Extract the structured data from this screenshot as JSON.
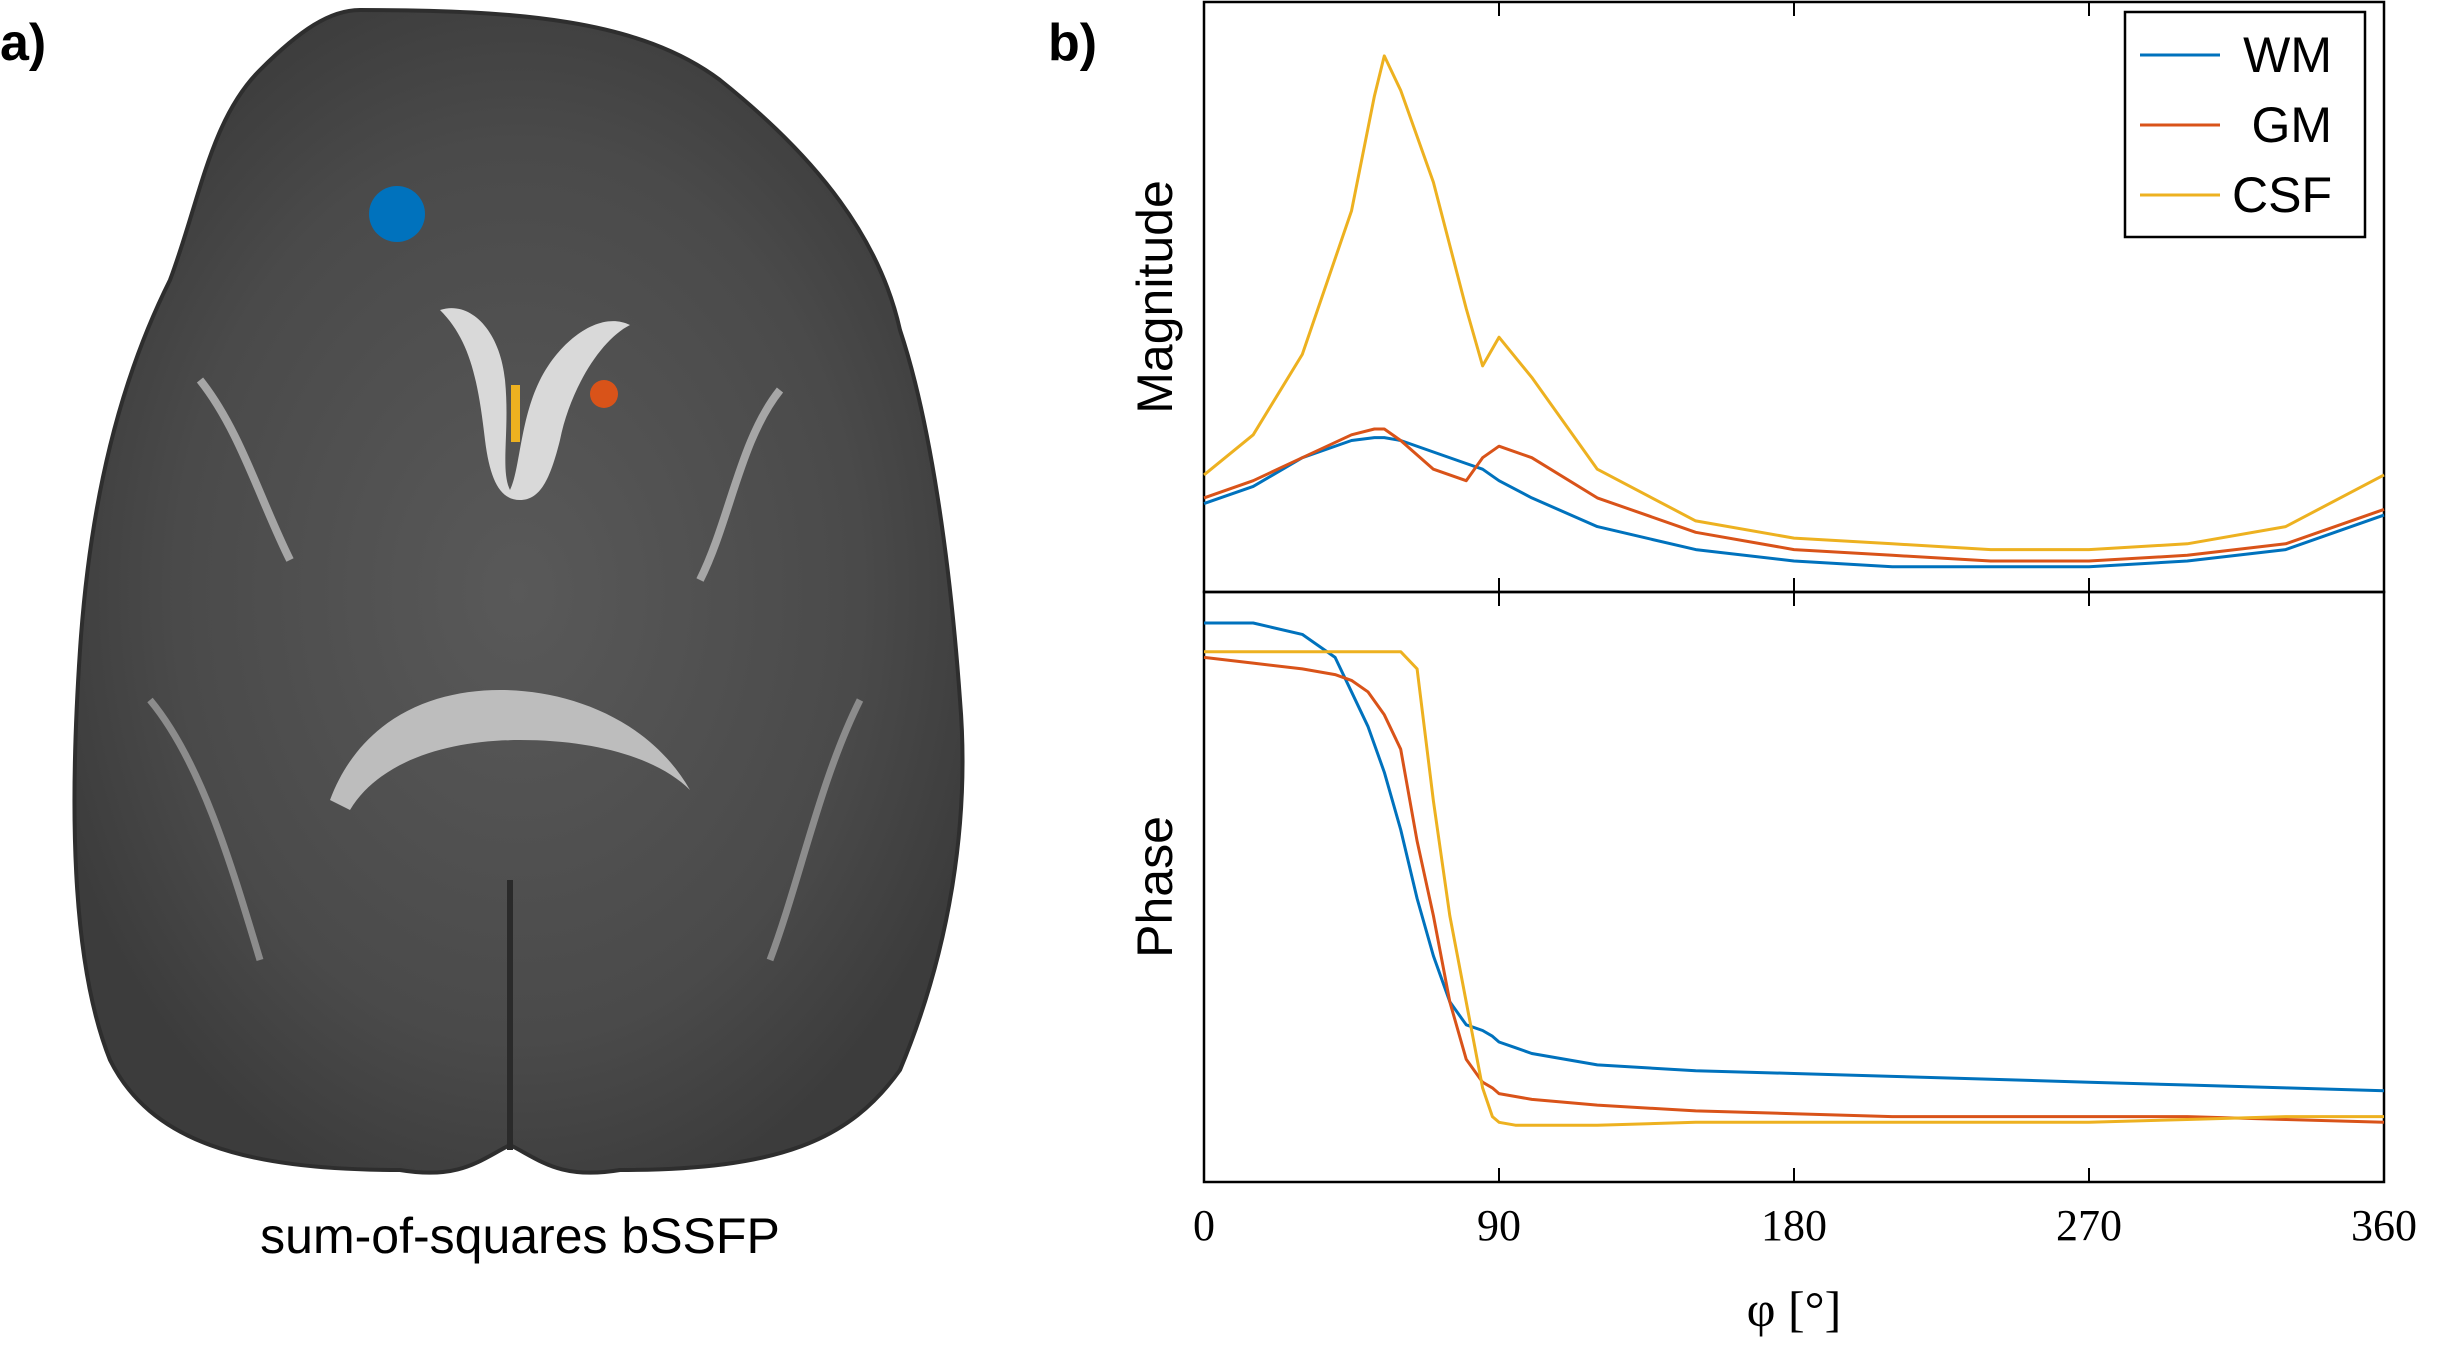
{
  "panel_a": {
    "label": "a)",
    "caption": "sum-of-squares bSSFP",
    "roi_colors": {
      "WM": "#0072BD",
      "GM": "#D95319",
      "CSF": "#EDB120"
    }
  },
  "panel_b": {
    "label": "b)"
  },
  "chart_data": {
    "type": "line",
    "title": "",
    "xlabel": "φ [°]",
    "x_ticks": [
      0,
      90,
      180,
      270,
      360
    ],
    "x_tick_labels": [
      "0",
      "90",
      "180",
      "270",
      "360"
    ],
    "xlim": [
      0,
      360
    ],
    "legend": {
      "position": "top-right",
      "entries": [
        "WM",
        "GM",
        "CSF"
      ]
    },
    "colors": {
      "WM": "#0072BD",
      "GM": "#D95319",
      "CSF": "#EDB120"
    },
    "subplots": [
      {
        "ylabel": "Magnitude",
        "ylim": [
          0,
          1
        ],
        "x": [
          0,
          15,
          30,
          45,
          52,
          55,
          60,
          70,
          80,
          85,
          90,
          100,
          120,
          150,
          180,
          210,
          240,
          270,
          300,
          330,
          360
        ],
        "series": [
          {
            "name": "WM",
            "values": [
              0.14,
              0.17,
              0.22,
              0.25,
              0.255,
              0.255,
              0.25,
              0.23,
              0.21,
              0.2,
              0.18,
              0.15,
              0.1,
              0.06,
              0.04,
              0.03,
              0.03,
              0.03,
              0.04,
              0.06,
              0.12
            ]
          },
          {
            "name": "GM",
            "values": [
              0.15,
              0.18,
              0.22,
              0.26,
              0.27,
              0.27,
              0.25,
              0.2,
              0.18,
              0.22,
              0.24,
              0.22,
              0.15,
              0.09,
              0.06,
              0.05,
              0.04,
              0.04,
              0.05,
              0.07,
              0.13
            ]
          },
          {
            "name": "CSF",
            "values": [
              0.19,
              0.26,
              0.4,
              0.65,
              0.85,
              0.92,
              0.86,
              0.7,
              0.48,
              0.38,
              0.43,
              0.36,
              0.2,
              0.11,
              0.08,
              0.07,
              0.06,
              0.06,
              0.07,
              0.1,
              0.19
            ]
          }
        ]
      },
      {
        "ylabel": "Phase",
        "ylim": [
          0,
          1
        ],
        "x": [
          0,
          15,
          30,
          40,
          45,
          50,
          55,
          60,
          65,
          70,
          75,
          80,
          85,
          88,
          90,
          95,
          100,
          120,
          150,
          180,
          210,
          240,
          270,
          300,
          330,
          360
        ],
        "series": [
          {
            "name": "WM",
            "values": [
              0.96,
              0.96,
              0.94,
              0.9,
              0.84,
              0.78,
              0.7,
              0.6,
              0.48,
              0.38,
              0.3,
              0.26,
              0.25,
              0.24,
              0.23,
              0.22,
              0.21,
              0.19,
              0.18,
              0.175,
              0.17,
              0.165,
              0.16,
              0.155,
              0.15,
              0.145
            ]
          },
          {
            "name": "GM",
            "values": [
              0.9,
              0.89,
              0.88,
              0.87,
              0.86,
              0.84,
              0.8,
              0.74,
              0.58,
              0.45,
              0.3,
              0.2,
              0.16,
              0.15,
              0.14,
              0.135,
              0.13,
              0.12,
              0.11,
              0.105,
              0.1,
              0.1,
              0.1,
              0.1,
              0.095,
              0.09
            ]
          },
          {
            "name": "CSF",
            "values": [
              0.91,
              0.91,
              0.91,
              0.91,
              0.91,
              0.91,
              0.91,
              0.91,
              0.88,
              0.65,
              0.45,
              0.3,
              0.15,
              0.1,
              0.09,
              0.085,
              0.085,
              0.085,
              0.09,
              0.09,
              0.09,
              0.09,
              0.09,
              0.095,
              0.1,
              0.1
            ]
          }
        ]
      }
    ]
  }
}
